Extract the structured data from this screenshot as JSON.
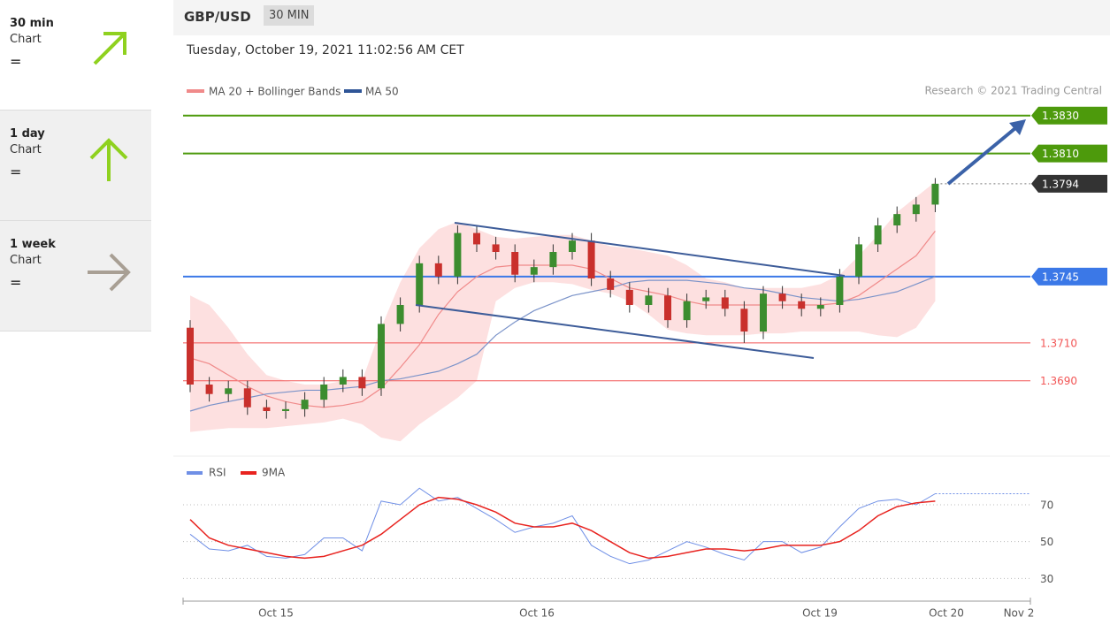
{
  "sidebar": [
    {
      "label": "30 min",
      "sub": "Chart",
      "value": "="
    },
    {
      "label": "1 day",
      "sub": "Chart",
      "value": "="
    },
    {
      "label": "1 week",
      "sub": "Chart",
      "value": "="
    }
  ],
  "header": {
    "title": "GBP/USD",
    "timeframe": "30 MIN"
  },
  "chart_data": [
    {
      "type": "candlestick",
      "subtitle": "Tuesday, October 19, 2021 11:02:56 AM CET",
      "source": "Research © 2021 Trading Central",
      "up_color": "#3c8d2f",
      "down_color": "#c9302c",
      "ylim": [
        1.3653,
        1.3849
      ],
      "candles": {
        "open": [
          1.3718,
          1.3688,
          1.3683,
          1.3686,
          1.3676,
          1.3674,
          1.3675,
          1.368,
          1.3688,
          1.3692,
          1.3686,
          1.372,
          1.373,
          1.3752,
          1.3745,
          1.3768,
          1.3762,
          1.3758,
          1.3746,
          1.375,
          1.3758,
          1.3764,
          1.3744,
          1.3738,
          1.373,
          1.3735,
          1.3722,
          1.3732,
          1.3734,
          1.3728,
          1.3716,
          1.3736,
          1.3732,
          1.3728,
          1.373,
          1.3745,
          1.3762,
          1.3772,
          1.3778,
          1.3783
        ],
        "high": [
          1.3722,
          1.3692,
          1.369,
          1.369,
          1.368,
          1.3679,
          1.3684,
          1.3692,
          1.3696,
          1.3696,
          1.3724,
          1.3734,
          1.3756,
          1.3756,
          1.3772,
          1.3772,
          1.3766,
          1.3762,
          1.3754,
          1.3762,
          1.3768,
          1.3768,
          1.3748,
          1.3742,
          1.3739,
          1.3739,
          1.3736,
          1.3738,
          1.3738,
          1.3732,
          1.374,
          1.374,
          1.3736,
          1.3734,
          1.3749,
          1.3766,
          1.3776,
          1.3782,
          1.3787,
          1.3797
        ],
        "low": [
          1.3684,
          1.3679,
          1.3679,
          1.3672,
          1.367,
          1.367,
          1.3671,
          1.3676,
          1.3684,
          1.3682,
          1.3682,
          1.3716,
          1.3726,
          1.3741,
          1.3741,
          1.3758,
          1.3754,
          1.3742,
          1.3742,
          1.3746,
          1.3754,
          1.374,
          1.3734,
          1.3726,
          1.3726,
          1.3718,
          1.3718,
          1.3728,
          1.3724,
          1.371,
          1.3712,
          1.3728,
          1.3724,
          1.3724,
          1.3726,
          1.3741,
          1.3758,
          1.3768,
          1.3774,
          1.3779
        ],
        "close": [
          1.3688,
          1.3683,
          1.3686,
          1.3676,
          1.3674,
          1.3675,
          1.368,
          1.3688,
          1.3692,
          1.3686,
          1.372,
          1.373,
          1.3752,
          1.3745,
          1.3768,
          1.3762,
          1.3758,
          1.3746,
          1.375,
          1.3758,
          1.3764,
          1.3744,
          1.3738,
          1.373,
          1.3735,
          1.3722,
          1.3732,
          1.3734,
          1.3728,
          1.3716,
          1.3736,
          1.3732,
          1.3728,
          1.373,
          1.3745,
          1.3762,
          1.3772,
          1.3778,
          1.3783,
          1.3794
        ]
      },
      "series": [
        {
          "name": "MA 20 + Bollinger Bands",
          "color": "#f08a8a",
          "band_color": "#fde0e0",
          "values": [
            1.3702,
            1.3699,
            1.3693,
            1.3687,
            1.3682,
            1.3679,
            1.3677,
            1.3676,
            1.3677,
            1.3679,
            1.3686,
            1.3697,
            1.3709,
            1.3725,
            1.3737,
            1.3745,
            1.375,
            1.3751,
            1.3751,
            1.3751,
            1.3751,
            1.3749,
            1.3744,
            1.3739,
            1.3737,
            1.3735,
            1.3732,
            1.373,
            1.373,
            1.373,
            1.373,
            1.373,
            1.373,
            1.373,
            1.3731,
            1.3735,
            1.3742,
            1.3749,
            1.3756,
            1.3769
          ],
          "upper": [
            1.3735,
            1.373,
            1.3718,
            1.3704,
            1.3693,
            1.369,
            1.3688,
            1.3688,
            1.369,
            1.369,
            1.3718,
            1.3742,
            1.376,
            1.377,
            1.3774,
            1.377,
            1.3766,
            1.3765,
            1.3766,
            1.3767,
            1.3767,
            1.3764,
            1.3761,
            1.376,
            1.3758,
            1.3756,
            1.3751,
            1.3744,
            1.3742,
            1.3739,
            1.3739,
            1.3739,
            1.3739,
            1.3741,
            1.3746,
            1.3756,
            1.3767,
            1.3779,
            1.3787,
            1.3795
          ],
          "lower": [
            1.3663,
            1.3664,
            1.3665,
            1.3665,
            1.3665,
            1.3666,
            1.3667,
            1.3668,
            1.367,
            1.3667,
            1.366,
            1.3658,
            1.3667,
            1.3674,
            1.3681,
            1.369,
            1.3732,
            1.3739,
            1.3742,
            1.3742,
            1.3741,
            1.3738,
            1.3736,
            1.3732,
            1.3725,
            1.3717,
            1.3715,
            1.3714,
            1.3714,
            1.3714,
            1.3715,
            1.3715,
            1.3716,
            1.3716,
            1.3716,
            1.3716,
            1.3714,
            1.3713,
            1.3718,
            1.3732
          ]
        },
        {
          "name": "MA 50",
          "color": "#7b93c9",
          "legend_color": "#2f5597",
          "values": [
            1.3674,
            1.3677,
            1.3679,
            1.3681,
            1.3683,
            1.3684,
            1.3685,
            1.3685,
            1.3686,
            1.3687,
            1.369,
            1.3691,
            1.3693,
            1.3695,
            1.3699,
            1.3704,
            1.3714,
            1.3721,
            1.3727,
            1.3731,
            1.3735,
            1.3737,
            1.3739,
            1.3742,
            1.3743,
            1.3743,
            1.3743,
            1.3742,
            1.3741,
            1.3739,
            1.3738,
            1.3736,
            1.3734,
            1.3733,
            1.3732,
            1.3733,
            1.3735,
            1.3737,
            1.3741,
            1.3745
          ]
        }
      ],
      "levels": [
        {
          "value": 1.383,
          "label": "1.3830",
          "color": "#4d9a0c",
          "boxed": true
        },
        {
          "value": 1.381,
          "label": "1.3810",
          "color": "#4d9a0c",
          "boxed": true
        },
        {
          "value": 1.3794,
          "label": "1.3794",
          "color": "#333333",
          "boxed": true,
          "dotted": true
        },
        {
          "value": 1.3745,
          "label": "1.3745",
          "color": "#3b78e7",
          "boxed": true
        },
        {
          "value": 1.371,
          "label": "1.3710",
          "color": "#f25656",
          "boxed": false
        },
        {
          "value": 1.369,
          "label": "1.3690",
          "color": "#f25656",
          "boxed": false
        }
      ]
    },
    {
      "type": "line",
      "ylim": [
        22,
        82
      ],
      "yticks": [
        30,
        50,
        70
      ],
      "x_labels": [
        "Oct 15",
        "Oct 16",
        "Oct 19",
        "Oct 20",
        "Nov 2"
      ],
      "series": [
        {
          "name": "RSI",
          "color": "#6f8fe6",
          "values": [
            54,
            46,
            45,
            48,
            42,
            41,
            43,
            52,
            52,
            45,
            72,
            70,
            79,
            72,
            74,
            68,
            62,
            55,
            58,
            60,
            64,
            48,
            42,
            38,
            40,
            45,
            50,
            47,
            43,
            40,
            50,
            50,
            44,
            47,
            58,
            68,
            72,
            73,
            70,
            76
          ]
        },
        {
          "name": "9MA",
          "color": "#e8231f",
          "values": [
            62,
            52,
            48,
            46,
            44,
            42,
            41,
            42,
            45,
            48,
            54,
            62,
            70,
            74,
            73,
            70,
            66,
            60,
            58,
            58,
            60,
            56,
            50,
            44,
            41,
            42,
            44,
            46,
            46,
            45,
            46,
            48,
            48,
            48,
            50,
            56,
            64,
            69,
            71,
            72
          ]
        }
      ]
    }
  ]
}
